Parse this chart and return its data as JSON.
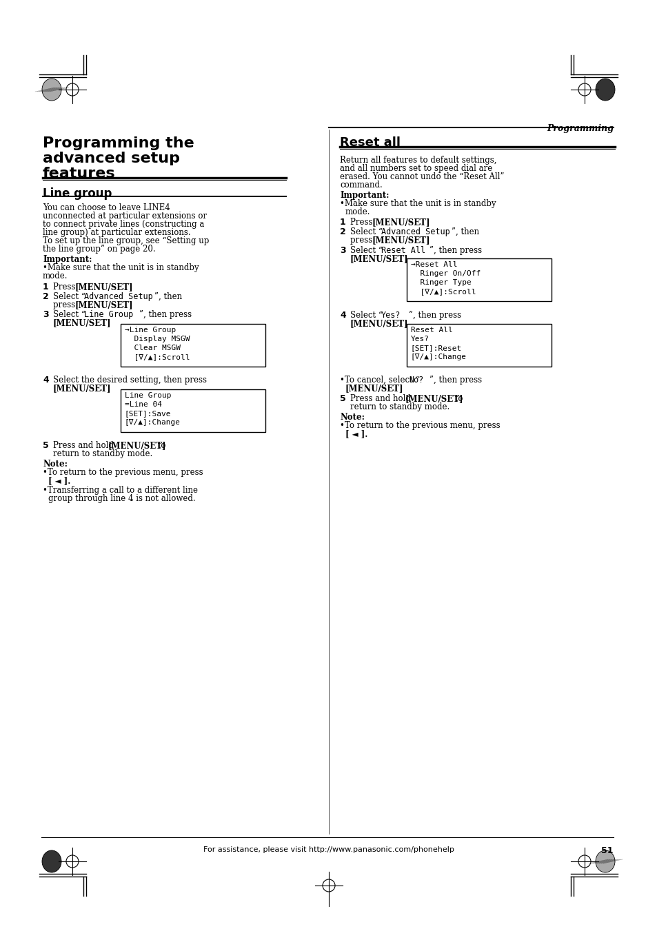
{
  "page_bg": "#ffffff",
  "header_italic": "Programming",
  "footer_text": "For assistance, please visit http://www.panasonic.com/phonehelp",
  "footer_page": "51",
  "left_col": {
    "main_title": "Programming the\nadvanced setup\nfeatures",
    "section1_title": "Line group",
    "section1_body": "You can choose to leave LINE4\nunconnected at particular extensions or\nto connect private lines (constructing a\nline group) at particular extensions.\nTo set up the line group, see “Setting up\nthe line group” on page 20.",
    "important_label": "Important:",
    "important_body": "•Make sure that the unit is in standby\nmode.",
    "step1": "1   Press [MENU/SET].",
    "step2_a": "2   Select “Advanced Setup”, then",
    "step2_b": "     press [MENU/SET].",
    "step3_a": "3   Select “Line Group”, then press",
    "step3_b": "     [MENU/SET].",
    "box1_lines": [
      "→Line Group",
      "  Display MSGW",
      "  Clear MSGW",
      "  [∇/▲]:Scroll"
    ],
    "step4_a": "4   Select the desired setting, then press",
    "step4_b": "     [MENU/SET].",
    "box2_lines": [
      "Line Group",
      "=Line 04",
      "[SET]:Save",
      "[∇/▲]:Change"
    ],
    "step5_a": "5   Press and hold [MENU/SET] to",
    "step5_b": "     return to standby mode.",
    "note_label": "Note:",
    "note_body1": "•To return to the previous menu, press\n  [ ◄ ].",
    "note_body2": "•Transferring a call to a different line\n  group through line 4 is not allowed."
  },
  "right_col": {
    "section2_title": "Reset all",
    "section2_body": "Return all features to default settings,\nand all numbers set to speed dial are\nerased. You cannot undo the “Reset All”\ncommand.",
    "important_label": "Important:",
    "important_body": "•Make sure that the unit is in standby\n  mode.",
    "step1": "1   Press [MENU/SET].",
    "step2_a": "2   Select “Advanced Setup”, then",
    "step2_b": "     press [MENU/SET].",
    "step3_a": "3   Select “Reset All”, then press",
    "step3_b": "     [MENU/SET].",
    "box1_lines": [
      "→Reset All",
      "  Ringer On/Off",
      "  Ringer Type",
      "  [∇/▲]:Scroll"
    ],
    "step4_a": "4   Select “Yes?”, then press",
    "step4_b": "     [MENU/SET].",
    "box2_lines": [
      "Reset All",
      "Yes?",
      "[SET]:Reset",
      "[∇/▲]:Change"
    ],
    "cancel_bullet": "•To cancel, select “No?”, then press\n  [MENU/SET].",
    "step5_a": "5   Press and hold [MENU/SET] to",
    "step5_b": "     return to standby mode.",
    "note_label": "Note:",
    "note_body": "•To return to the previous menu, press\n  [ ◄ ]."
  }
}
